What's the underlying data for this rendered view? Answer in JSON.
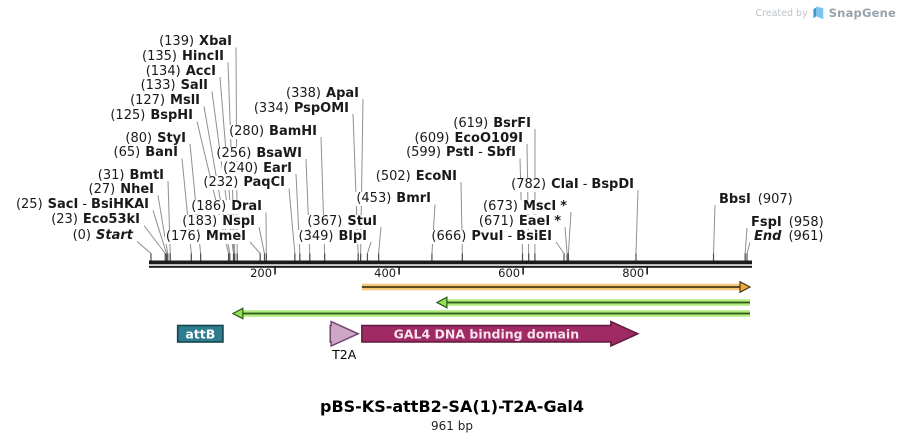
{
  "watermark": {
    "created_by": "Created by",
    "brand": "SnapGene"
  },
  "map": {
    "length_bp": 961,
    "ruler_ticks": [
      200,
      400,
      600,
      800
    ],
    "colors": {
      "bar": "#1b1b1b",
      "leader_line": "#8f8f8f",
      "orange_arrow_halo": "#f6c77c",
      "orange_arrow_core": "#473a14",
      "orange_arrow_head": "#efa93f",
      "green_arrow_halo": "#aeeb7d",
      "green_arrow_core": "#2d5a15",
      "green_arrow_head": "#93e058"
    },
    "sites": [
      {
        "bp": 139,
        "pos": "(139)",
        "name": "XbaI"
      },
      {
        "bp": 135,
        "pos": "(135)",
        "name": "HincII"
      },
      {
        "bp": 134,
        "pos": "(134)",
        "name": "AccI"
      },
      {
        "bp": 133,
        "pos": "(133)",
        "name": "SalI"
      },
      {
        "bp": 127,
        "pos": "(127)",
        "name": "MslI"
      },
      {
        "bp": 125,
        "pos": "(125)",
        "name": "BspHI"
      },
      {
        "bp": 80,
        "pos": "(80)",
        "name": "StyI"
      },
      {
        "bp": 65,
        "pos": "(65)",
        "name": "BanI"
      },
      {
        "bp": 31,
        "pos": "(31)",
        "name": "BmtI"
      },
      {
        "bp": 27,
        "pos": "(27)",
        "name": "NheI"
      },
      {
        "bp": 25,
        "pos": "(25)",
        "name": "SacI",
        "name2": "BsiHKAI"
      },
      {
        "bp": 23,
        "pos": "(23)",
        "name": "Eco53kI"
      },
      {
        "bp": 0,
        "pos": "(0)",
        "name": "Start",
        "italic": true
      },
      {
        "bp": 280,
        "pos": "(280)",
        "name": "BamHI"
      },
      {
        "bp": 256,
        "pos": "(256)",
        "name": "BsaWI"
      },
      {
        "bp": 240,
        "pos": "(240)",
        "name": "EarI"
      },
      {
        "bp": 232,
        "pos": "(232)",
        "name": "PaqCI"
      },
      {
        "bp": 186,
        "pos": "(186)",
        "name": "DraI"
      },
      {
        "bp": 183,
        "pos": "(183)",
        "name": "NspI"
      },
      {
        "bp": 176,
        "pos": "(176)",
        "name": "MmeI"
      },
      {
        "bp": 338,
        "pos": "(338)",
        "name": "ApaI"
      },
      {
        "bp": 334,
        "pos": "(334)",
        "name": "PspOMI"
      },
      {
        "bp": 367,
        "pos": "(367)",
        "name": "StuI"
      },
      {
        "bp": 349,
        "pos": "(349)",
        "name": "BlpI"
      },
      {
        "bp": 502,
        "pos": "(502)",
        "name": "EcoNI"
      },
      {
        "bp": 453,
        "pos": "(453)",
        "name": "BmrI"
      },
      {
        "bp": 666,
        "pos": "(666)",
        "name": "PvuI",
        "name2": "BsiEI"
      },
      {
        "bp": 619,
        "pos": "(619)",
        "name": "BsrFI"
      },
      {
        "bp": 609,
        "pos": "(609)",
        "name": "EcoO109I"
      },
      {
        "bp": 599,
        "pos": "(599)",
        "name": "PstI",
        "name2": "SbfI"
      },
      {
        "bp": 782,
        "pos": "(782)",
        "name": "ClaI",
        "name2": "BspDI"
      },
      {
        "bp": 673,
        "pos": "(673)",
        "name": "MscI",
        "suffix": "*"
      },
      {
        "bp": 671,
        "pos": "(671)",
        "name": "EaeI",
        "suffix": "*"
      },
      {
        "bp": 907,
        "pos": "(907)",
        "name": "BbsI",
        "format": "right"
      },
      {
        "bp": 958,
        "pos": "(958)",
        "name": "FspI",
        "format": "right"
      },
      {
        "bp": 961,
        "pos": "(961)",
        "name": "End",
        "format": "right",
        "italic": true
      }
    ],
    "arrows": [
      {
        "name": "orf-arrow",
        "direction": "right",
        "from_bp": 340,
        "to_bp": 961,
        "halo": "#f6c77c",
        "core": "#473a14",
        "head": "#efa93f"
      },
      {
        "name": "primer-arrow-upper",
        "direction": "left",
        "from_bp": 961,
        "to_bp": 461,
        "halo": "#aeeb7d",
        "core": "#2d5a15",
        "head": "#93e058"
      },
      {
        "name": "primer-arrow-lower",
        "direction": "left",
        "from_bp": 961,
        "to_bp": 132,
        "halo": "#aeeb7d",
        "core": "#2d5a15",
        "head": "#93e058"
      }
    ],
    "features": [
      {
        "label": "attB",
        "shape": "box",
        "from_bp": 43,
        "to_bp": 116,
        "fill": "#2e7d8e",
        "stroke": "#16454f",
        "text_color": "#ffffff"
      },
      {
        "label": "T2A",
        "shape": "arrow",
        "from_bp": 289,
        "to_bp": 334,
        "fill": "#cda6c8",
        "stroke": "#6d4569",
        "text_color": "#000000",
        "label_below": true
      },
      {
        "label": "GAL4 DNA binding domain",
        "shape": "arrow",
        "from_bp": 340,
        "to_bp": 785,
        "fill": "#a02a63",
        "stroke": "#5e1a3d",
        "text_color": "#f6e3ee"
      }
    ]
  },
  "footer": {
    "title": "pBS-KS-attB2-SA(1)-T2A-Gal4",
    "subtitle": "961 bp"
  }
}
